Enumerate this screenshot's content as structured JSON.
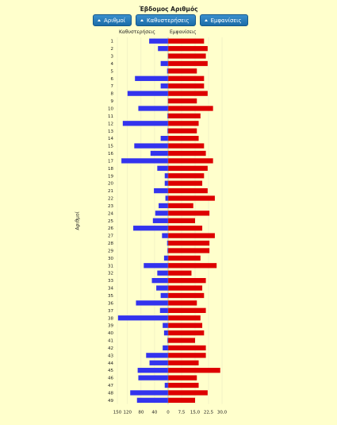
{
  "title": "Έβδομος Αριθμός",
  "toolbar": {
    "buttons": [
      {
        "label": "Αριθμοί",
        "icon": "sort-up-icon"
      },
      {
        "label": "Καθυστερήσεις",
        "icon": "sort-up-icon"
      },
      {
        "label": "Εμφανίσεις",
        "icon": "sort-up-icon"
      }
    ]
  },
  "chart_data": {
    "type": "bar",
    "orientation": "horizontal-diverging",
    "ylabel": "Αριθμοί",
    "left_series": {
      "name": "Καθυστερήσεις",
      "color": "#3333ee"
    },
    "right_series": {
      "name": "Εμφανίσεις",
      "color": "#dd0000"
    },
    "categories": [
      "1",
      "2",
      "3",
      "4",
      "5",
      "6",
      "7",
      "8",
      "9",
      "10",
      "11",
      "12",
      "13",
      "14",
      "15",
      "16",
      "17",
      "18",
      "19",
      "20",
      "21",
      "22",
      "23",
      "24",
      "25",
      "26",
      "27",
      "28",
      "29",
      "30",
      "31",
      "32",
      "33",
      "34",
      "35",
      "36",
      "37",
      "38",
      "39",
      "40",
      "41",
      "42",
      "43",
      "44",
      "45",
      "46",
      "47",
      "48",
      "49"
    ],
    "delays": [
      56,
      30,
      1,
      22,
      3,
      98,
      22,
      120,
      1,
      88,
      2,
      134,
      2,
      22,
      100,
      52,
      138,
      32,
      10,
      10,
      42,
      8,
      28,
      38,
      45,
      103,
      18,
      3,
      2,
      12,
      72,
      32,
      48,
      35,
      22,
      95,
      24,
      148,
      16,
      12,
      2,
      16,
      65,
      55,
      90,
      88,
      10,
      112,
      92
    ],
    "appearances": [
      20,
      22,
      21,
      22,
      16,
      20,
      20,
      22,
      16,
      25,
      18,
      17,
      16,
      17,
      20,
      21,
      25,
      22,
      20,
      19,
      22,
      26,
      14,
      23,
      15,
      19,
      26,
      23,
      23,
      18,
      27,
      13,
      21,
      19,
      20,
      16,
      21,
      18,
      19,
      20,
      15,
      21,
      21,
      17,
      29,
      16,
      17,
      22,
      15
    ],
    "xticks": [
      "150",
      "120",
      "80",
      "40",
      "0",
      "7,5",
      "15,0",
      "22,5",
      "30,0"
    ],
    "grid": true
  }
}
